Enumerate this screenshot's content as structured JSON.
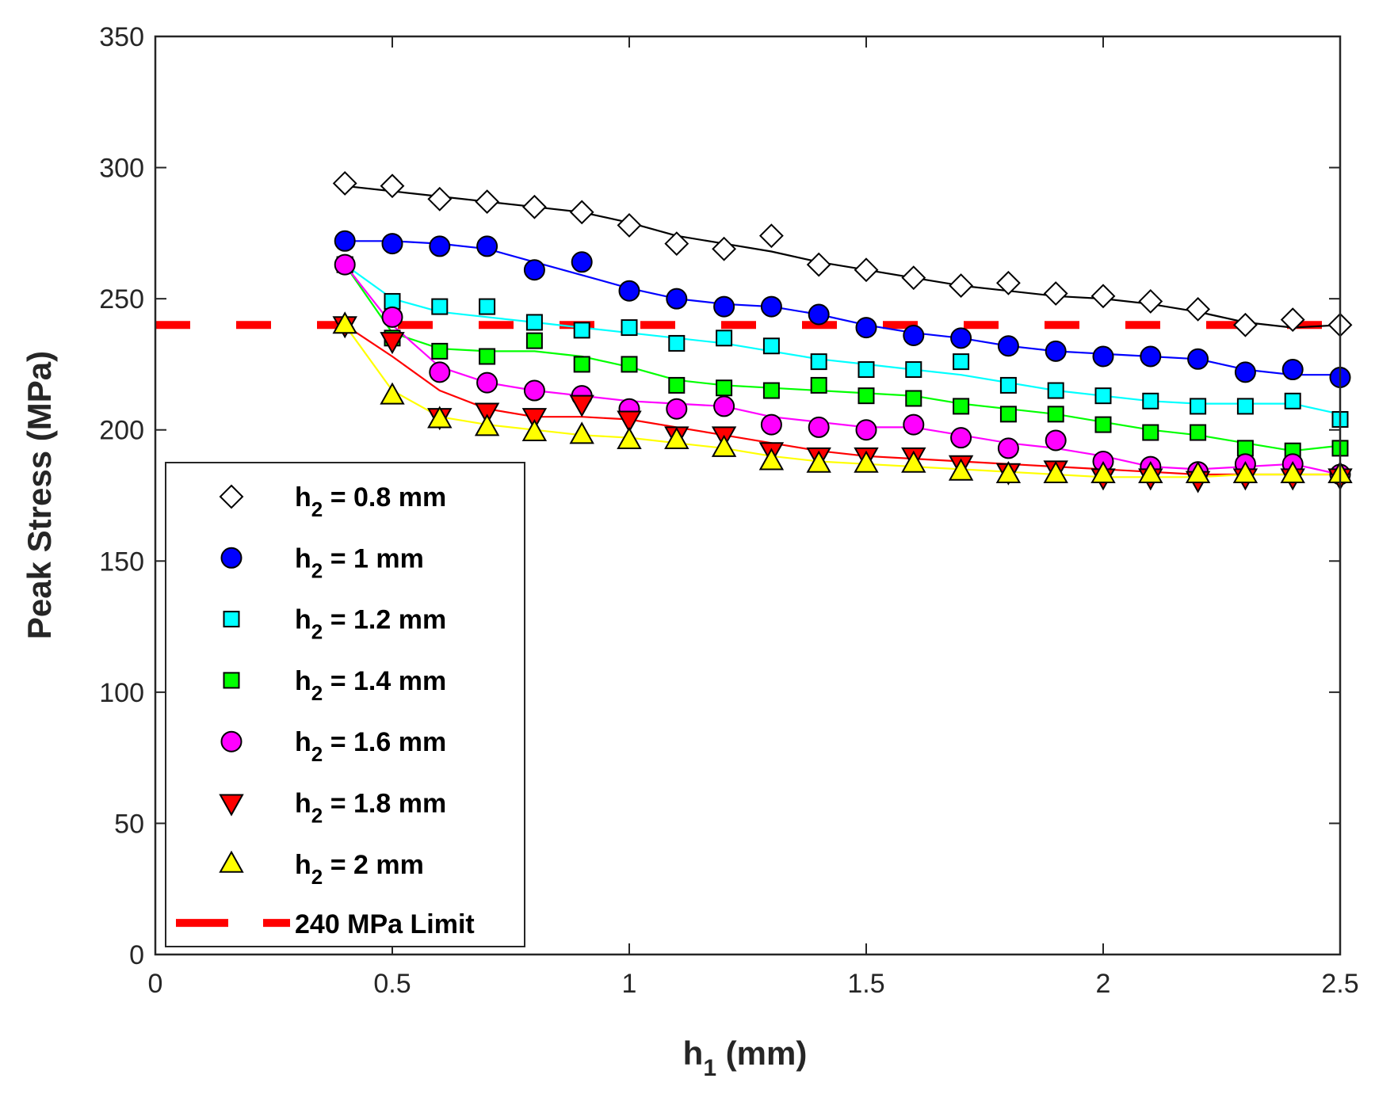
{
  "chart_data": {
    "type": "line",
    "xlabel": "h",
    "xlabel_sub": "1",
    "xlabel_unit": " (mm)",
    "ylabel": "Peak Stress (MPa)",
    "xlim": [
      0,
      2.5
    ],
    "ylim": [
      0,
      350
    ],
    "xticks": [
      0,
      0.5,
      1,
      1.5,
      2,
      2.5
    ],
    "xtick_labels": [
      "0",
      "0.5",
      "1",
      "1.5",
      "2",
      "2.5"
    ],
    "yticks": [
      0,
      50,
      100,
      150,
      200,
      250,
      300,
      350
    ],
    "ytick_labels": [
      "0",
      "50",
      "100",
      "150",
      "200",
      "250",
      "300",
      "350"
    ],
    "grid": false,
    "legend_position": "bottom-left",
    "x": [
      0.4,
      0.5,
      0.6,
      0.7,
      0.8,
      0.9,
      1.0,
      1.1,
      1.2,
      1.3,
      1.4,
      1.5,
      1.6,
      1.7,
      1.8,
      1.9,
      2.0,
      2.1,
      2.2,
      2.3,
      2.4,
      2.5
    ],
    "series": [
      {
        "name": "h2 = 0.8 mm",
        "legend_prefix": "h",
        "legend_sub": "2",
        "legend_suffix": " = 0.8 mm",
        "marker": "diamond",
        "marker_fill": "#ffffff",
        "line_color": "#000000",
        "values": [
          294,
          293,
          288,
          287,
          285,
          283,
          278,
          271,
          269,
          274,
          263,
          261,
          258,
          255,
          256,
          252,
          251,
          249,
          246,
          240,
          242,
          240
        ],
        "fit": [
          293,
          291,
          289,
          287,
          285,
          283,
          279,
          274,
          271,
          268,
          264,
          261,
          258,
          255,
          253,
          251,
          250,
          248,
          245,
          241,
          239,
          240
        ]
      },
      {
        "name": "h2 = 1 mm",
        "legend_prefix": "h",
        "legend_sub": "2",
        "legend_suffix": " = 1 mm",
        "marker": "circle",
        "marker_fill": "#0000ff",
        "line_color": "#0000ff",
        "values": [
          272,
          271,
          270,
          270,
          261,
          264,
          253,
          250,
          247,
          247,
          244,
          239,
          236,
          235,
          232,
          230,
          228,
          228,
          227,
          222,
          223,
          220
        ],
        "fit": [
          272,
          272,
          271,
          269,
          264,
          259,
          254,
          250,
          248,
          247,
          244,
          240,
          237,
          235,
          232,
          230,
          229,
          228,
          227,
          223,
          221,
          221
        ]
      },
      {
        "name": "h2 = 1.2 mm",
        "legend_prefix": "h",
        "legend_sub": "2",
        "legend_suffix": " = 1.2 mm",
        "marker": "square",
        "marker_fill": "#00ffff",
        "line_color": "#00ffff",
        "values": [
          263,
          249,
          247,
          247,
          241,
          238,
          239,
          233,
          235,
          232,
          226,
          223,
          223,
          226,
          217,
          215,
          213,
          211,
          209,
          209,
          211,
          204
        ],
        "fit": [
          263,
          250,
          245,
          243,
          241,
          239,
          237,
          235,
          233,
          230,
          227,
          225,
          223,
          221,
          218,
          215,
          213,
          211,
          210,
          210,
          210,
          206
        ]
      },
      {
        "name": "h2 = 1.4 mm",
        "legend_prefix": "h",
        "legend_sub": "2",
        "legend_suffix": " = 1.4 mm",
        "marker": "square",
        "marker_fill": "#00ff00",
        "line_color": "#00ff00",
        "values": [
          263,
          235,
          230,
          228,
          234,
          225,
          225,
          217,
          216,
          215,
          217,
          213,
          212,
          209,
          206,
          206,
          202,
          199,
          199,
          193,
          192,
          193
        ],
        "fit": [
          263,
          237,
          231,
          230,
          230,
          228,
          224,
          219,
          217,
          216,
          215,
          214,
          213,
          210,
          208,
          206,
          203,
          200,
          198,
          195,
          192,
          194
        ]
      },
      {
        "name": "h2 = 1.6 mm",
        "legend_prefix": "h",
        "legend_sub": "2",
        "legend_suffix": " = 1.6 mm",
        "marker": "circle",
        "marker_fill": "#ff00ff",
        "line_color": "#ff00ff",
        "values": [
          263,
          243,
          222,
          218,
          215,
          213,
          208,
          208,
          209,
          202,
          201,
          200,
          202,
          197,
          193,
          196,
          188,
          186,
          184,
          187,
          187,
          183
        ],
        "fit": [
          263,
          240,
          224,
          218,
          215,
          213,
          211,
          210,
          209,
          205,
          203,
          201,
          201,
          198,
          195,
          193,
          190,
          186,
          185,
          186,
          187,
          183
        ]
      },
      {
        "name": "h2 = 1.8 mm",
        "legend_prefix": "h",
        "legend_sub": "2",
        "legend_suffix": " = 1.8 mm",
        "marker": "triangle-down",
        "marker_fill": "#ff0000",
        "line_color": "#ff0000",
        "values": [
          240,
          234,
          205,
          207,
          205,
          210,
          204,
          198,
          198,
          192,
          190,
          190,
          190,
          187,
          184,
          185,
          182,
          182,
          181,
          182,
          182,
          182
        ],
        "fit": [
          240,
          228,
          215,
          208,
          205,
          205,
          204,
          201,
          198,
          195,
          192,
          190,
          189,
          188,
          187,
          186,
          185,
          184,
          183,
          183,
          183,
          183
        ]
      },
      {
        "name": "h2 = 2 mm",
        "legend_prefix": "h",
        "legend_sub": "2",
        "legend_suffix": " = 2 mm",
        "marker": "triangle-up",
        "marker_fill": "#ffff00",
        "line_color": "#ffff00",
        "values": [
          240,
          213,
          204,
          201,
          199,
          198,
          196,
          196,
          193,
          188,
          187,
          187,
          187,
          184,
          183,
          183,
          183,
          183,
          183,
          183,
          183,
          183
        ],
        "fit": [
          240,
          215,
          205,
          202,
          200,
          198,
          197,
          195,
          193,
          190,
          188,
          187,
          186,
          185,
          184,
          183,
          182,
          182,
          182,
          183,
          183,
          183
        ]
      }
    ],
    "reference_line": {
      "name": "240 MPa Limit",
      "y": 240,
      "color": "#ff0000",
      "style": "dashed"
    }
  }
}
